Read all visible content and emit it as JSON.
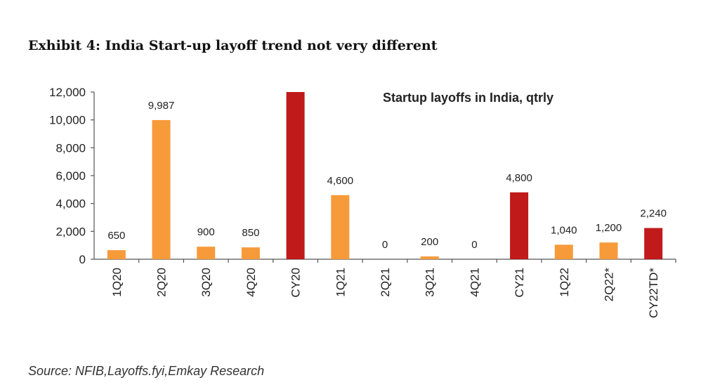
{
  "exhibit_title": "Exhibit 4: India Start-up layoff trend not very different",
  "source": "Source: NFIB,Layoffs.fyi,Emkay Research",
  "colors": {
    "quarter": "#f79a3a",
    "annual": "#c01a1a",
    "axis": "#555555",
    "text": "#222222"
  },
  "chart_data": {
    "type": "bar",
    "title": "Startup layoffs in India, qtrly",
    "xlabel": "",
    "ylabel": "",
    "ylim": [
      0,
      12000
    ],
    "yticks": [
      "0",
      "2,000",
      "4,000",
      "6,000",
      "8,000",
      "10,000",
      "12,000"
    ],
    "grid": false,
    "categories": [
      "1Q20",
      "2Q20",
      "3Q20",
      "4Q20",
      "CY20",
      "1Q21",
      "2Q21",
      "3Q21",
      "4Q21",
      "CY21",
      "1Q22",
      "2Q22*",
      "CY22TD*"
    ],
    "values": [
      650,
      9987,
      900,
      850,
      12000,
      4600,
      0,
      200,
      0,
      4800,
      1040,
      1200,
      2240
    ],
    "data_labels": [
      "650",
      "9,987",
      "900",
      "850",
      "",
      "4,600",
      "0",
      "200",
      "0",
      "4,800",
      "1,040",
      "1,200",
      "2,240"
    ],
    "bar_kind": [
      "quarter",
      "quarter",
      "quarter",
      "quarter",
      "annual",
      "quarter",
      "quarter",
      "quarter",
      "quarter",
      "annual",
      "quarter",
      "quarter",
      "annual"
    ]
  }
}
